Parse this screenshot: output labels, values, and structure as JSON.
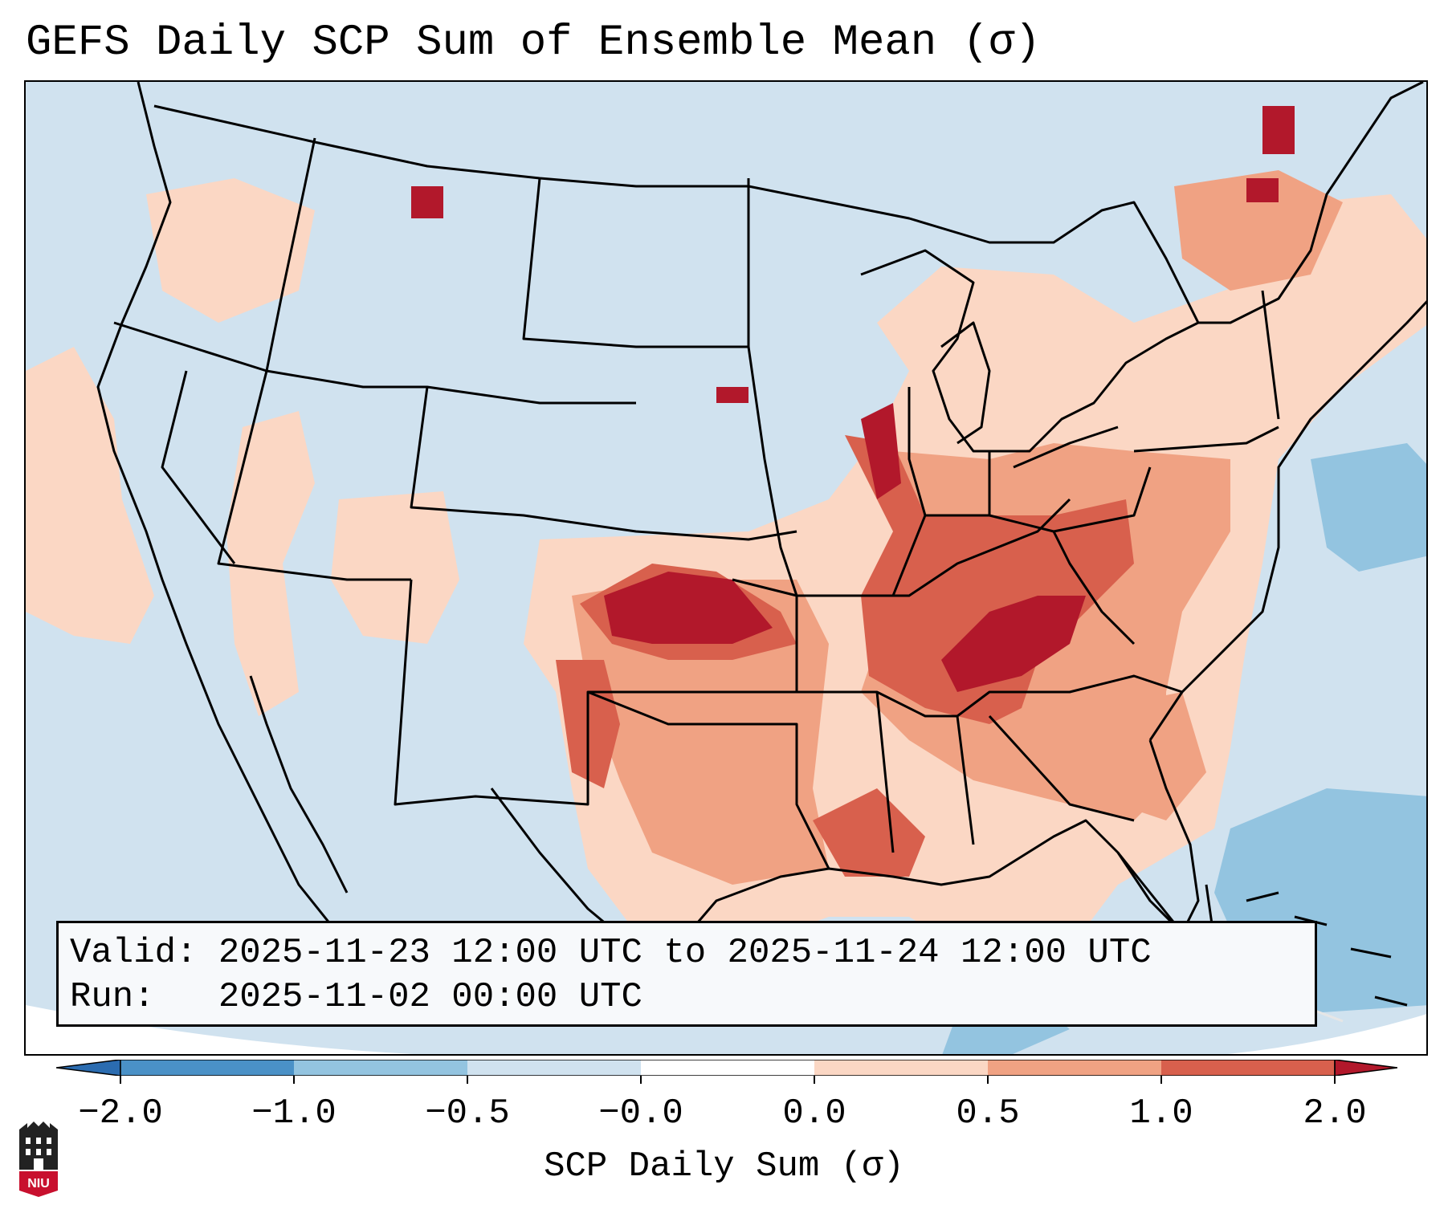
{
  "title": "GEFS Daily SCP Sum of Ensemble Mean (σ)",
  "info": {
    "valid_label": "Valid:",
    "valid_value": "2025-11-23 12:00 UTC to 2025-11-24 12:00 UTC",
    "run_label": "Run:",
    "run_value": "2025-11-02 00:00 UTC"
  },
  "colorbar": {
    "label": "SCP Daily Sum (σ)",
    "ticks": [
      "−2.0",
      "−1.0",
      "−0.5",
      "−0.0",
      "0.0",
      "0.5",
      "1.0",
      "2.0"
    ],
    "colors": [
      "#2b6cb0",
      "#4a91c7",
      "#93c4e0",
      "#d0e2ef",
      "#fbd7c4",
      "#f0a283",
      "#d8604d",
      "#b2182b"
    ],
    "extend": "both"
  },
  "logo_text": "NIU",
  "colors": {
    "ocean": "#d0e2ef",
    "neg_strong": "#93c4e0",
    "pos_light": "#fbd7c4",
    "pos_mid": "#f0a283",
    "pos_strong": "#d8604d",
    "pos_max": "#b2182b"
  }
}
